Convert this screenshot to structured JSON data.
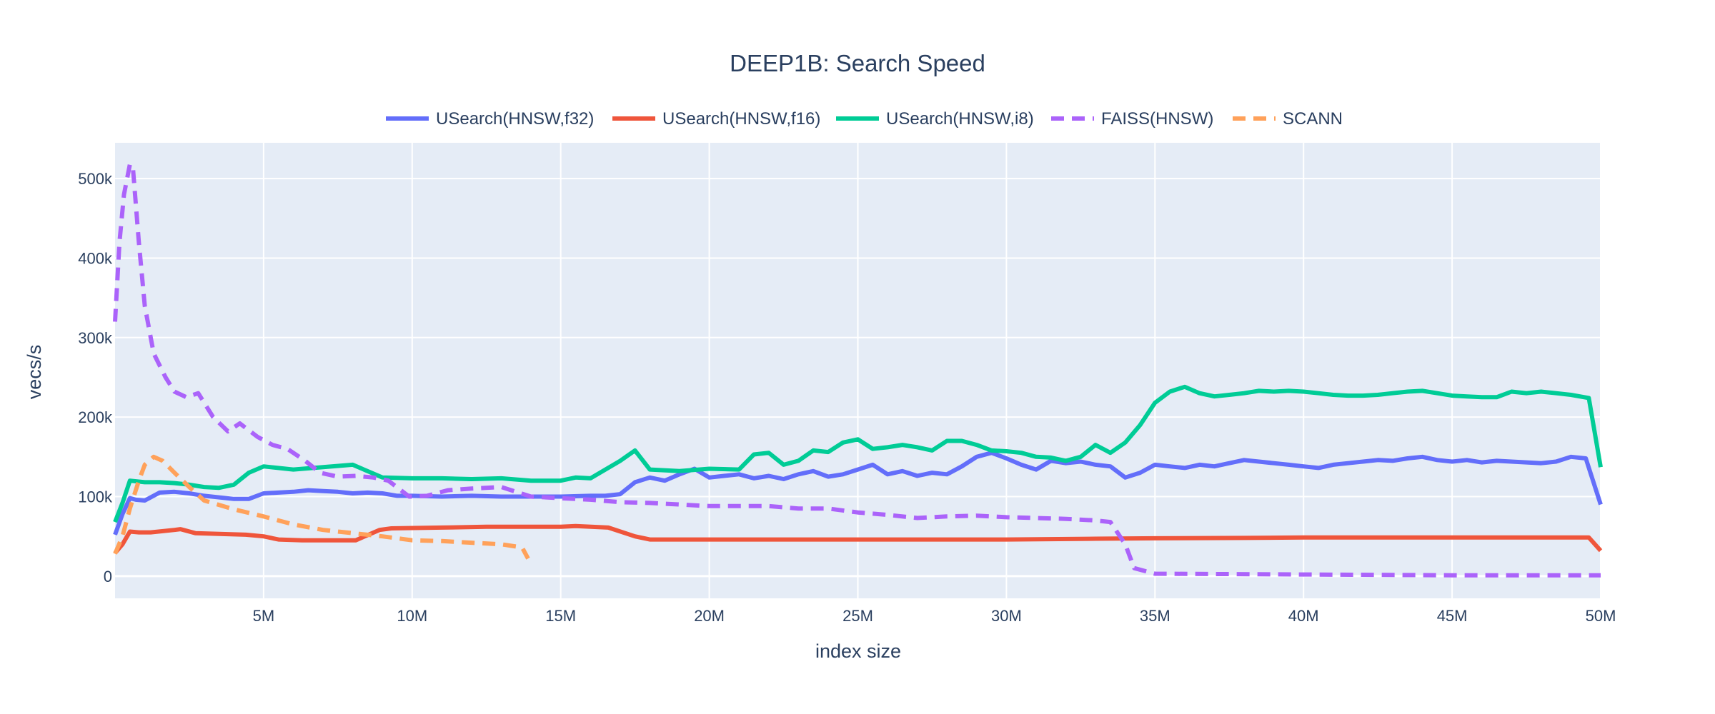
{
  "chart_data": {
    "type": "line",
    "title": "DEEP1B: Search Speed",
    "xlabel": "index size",
    "ylabel": "vecs/s",
    "xlim": [
      0,
      50000000
    ],
    "ylim": [
      -28000,
      545000
    ],
    "x_ticks": [
      {
        "value": 5000000,
        "label": "5M"
      },
      {
        "value": 10000000,
        "label": "10M"
      },
      {
        "value": 15000000,
        "label": "15M"
      },
      {
        "value": 20000000,
        "label": "20M"
      },
      {
        "value": 25000000,
        "label": "25M"
      },
      {
        "value": 30000000,
        "label": "30M"
      },
      {
        "value": 35000000,
        "label": "35M"
      },
      {
        "value": 40000000,
        "label": "40M"
      },
      {
        "value": 45000000,
        "label": "45M"
      },
      {
        "value": 50000000,
        "label": "50M"
      }
    ],
    "y_ticks": [
      {
        "value": 0,
        "label": "0"
      },
      {
        "value": 100000,
        "label": "100k"
      },
      {
        "value": 200000,
        "label": "200k"
      },
      {
        "value": 300000,
        "label": "300k"
      },
      {
        "value": 400000,
        "label": "400k"
      },
      {
        "value": 500000,
        "label": "500k"
      }
    ],
    "grid": true,
    "legend_position": "top-center",
    "plot_background": "#e5ecf6",
    "series": [
      {
        "name": "USearch(HNSW,f32)",
        "color": "#636efa",
        "dash": "solid",
        "x": [
          0,
          250000,
          500000,
          700000,
          1000000,
          1500000,
          2000000,
          2500000,
          3000000,
          4000000,
          4500000,
          5000000,
          5500000,
          6000000,
          6500000,
          7000000,
          7500000,
          8000000,
          8500000,
          9000000,
          9500000,
          10000000,
          11000000,
          12000000,
          13000000,
          14000000,
          15000000,
          16000000,
          16500000,
          17000000,
          17500000,
          18000000,
          18500000,
          19000000,
          19500000,
          20000000,
          20500000,
          21000000,
          21500000,
          22000000,
          22500000,
          23000000,
          23500000,
          24000000,
          24500000,
          25000000,
          25500000,
          26000000,
          26500000,
          27000000,
          27500000,
          28000000,
          28500000,
          29000000,
          29500000,
          30000000,
          30500000,
          31000000,
          31500000,
          32000000,
          32500000,
          33000000,
          33500000,
          34000000,
          34500000,
          35000000,
          35500000,
          36000000,
          36500000,
          37000000,
          37500000,
          38000000,
          38500000,
          39000000,
          39500000,
          40000000,
          40500000,
          41000000,
          41500000,
          42000000,
          42500000,
          43000000,
          43500000,
          44000000,
          44500000,
          45000000,
          45500000,
          46000000,
          46500000,
          47000000,
          47500000,
          48000000,
          48500000,
          49000000,
          49500000,
          50000000
        ],
        "y": [
          52000,
          78000,
          98000,
          96000,
          95000,
          105000,
          106000,
          104000,
          101000,
          97000,
          97000,
          104000,
          105000,
          106000,
          108000,
          107000,
          106000,
          104000,
          105000,
          104000,
          101000,
          101000,
          100000,
          101000,
          100000,
          100000,
          100000,
          101000,
          101000,
          103000,
          118000,
          124000,
          120000,
          128000,
          135000,
          124000,
          126000,
          128000,
          123000,
          126000,
          122000,
          128000,
          132000,
          125000,
          128000,
          134000,
          140000,
          128000,
          132000,
          126000,
          130000,
          128000,
          138000,
          150000,
          155000,
          148000,
          140000,
          134000,
          145000,
          142000,
          144000,
          140000,
          138000,
          124000,
          130000,
          140000,
          138000,
          136000,
          140000,
          138000,
          142000,
          146000,
          144000,
          142000,
          140000,
          138000,
          136000,
          140000,
          142000,
          144000,
          146000,
          145000,
          148000,
          150000,
          146000,
          144000,
          146000,
          143000,
          145000,
          144000,
          143000,
          142000,
          144000,
          150000,
          148000,
          90000
        ]
      },
      {
        "name": "USearch(HNSW,f16)",
        "color": "#ef553b",
        "dash": "solid",
        "x": [
          0,
          250000,
          500000,
          800000,
          1200000,
          2000000,
          2200000,
          2700000,
          3500000,
          4400000,
          5000000,
          5500000,
          6300000,
          7100000,
          8100000,
          8900000,
          9300000,
          11000000,
          12500000,
          13500000,
          15000000,
          15500000,
          16600000,
          17500000,
          18000000,
          19000000,
          20000000,
          25000000,
          30000000,
          33000000,
          35000000,
          38000000,
          40000000,
          45000000,
          49600000,
          50000000
        ],
        "y": [
          29000,
          40000,
          56000,
          55000,
          55000,
          58000,
          59000,
          54000,
          53000,
          52000,
          50000,
          46000,
          45000,
          45000,
          45000,
          58000,
          60000,
          61000,
          62000,
          62000,
          62000,
          63000,
          61000,
          50000,
          46000,
          46000,
          46000,
          46000,
          46000,
          47000,
          47500,
          48000,
          48500,
          48500,
          48500,
          32000
        ]
      },
      {
        "name": "USearch(HNSW,i8)",
        "color": "#00cc96",
        "dash": "solid",
        "x": [
          0,
          250000,
          500000,
          1000000,
          1500000,
          2000000,
          2500000,
          3000000,
          3500000,
          4000000,
          4500000,
          5000000,
          6000000,
          7000000,
          8000000,
          9000000,
          10000000,
          11000000,
          12000000,
          13000000,
          14000000,
          15000000,
          15500000,
          16000000,
          17000000,
          17500000,
          18000000,
          19000000,
          20000000,
          21000000,
          21500000,
          22000000,
          22500000,
          23000000,
          23500000,
          24000000,
          24500000,
          25000000,
          25500000,
          26000000,
          26500000,
          27000000,
          27500000,
          28000000,
          28500000,
          29000000,
          29500000,
          30000000,
          30500000,
          31000000,
          31500000,
          32000000,
          32500000,
          33000000,
          33500000,
          34000000,
          34500000,
          35000000,
          35500000,
          36000000,
          36500000,
          37000000,
          37500000,
          38000000,
          38500000,
          39000000,
          39500000,
          40000000,
          40500000,
          41000000,
          41500000,
          42000000,
          42500000,
          43000000,
          43500000,
          44000000,
          44500000,
          45000000,
          45500000,
          46000000,
          46500000,
          47000000,
          47500000,
          48000000,
          48500000,
          49000000,
          49600000,
          50000000
        ],
        "y": [
          68000,
          92000,
          120000,
          118000,
          118000,
          117000,
          115000,
          112000,
          111000,
          115000,
          130000,
          138000,
          134000,
          137000,
          140000,
          124000,
          123000,
          123000,
          122000,
          123000,
          120000,
          120000,
          124000,
          123000,
          145000,
          158000,
          134000,
          132000,
          135000,
          134000,
          153000,
          155000,
          140000,
          145000,
          158000,
          156000,
          168000,
          172000,
          160000,
          162000,
          165000,
          162000,
          158000,
          170000,
          170000,
          165000,
          158000,
          157000,
          155000,
          150000,
          149000,
          145000,
          150000,
          165000,
          155000,
          168000,
          190000,
          218000,
          232000,
          238000,
          230000,
          226000,
          228000,
          230000,
          233000,
          232000,
          233000,
          232000,
          230000,
          228000,
          227000,
          227000,
          228000,
          230000,
          232000,
          233000,
          230000,
          227000,
          226000,
          225000,
          225000,
          232000,
          230000,
          232000,
          230000,
          228000,
          224000,
          137000
        ]
      },
      {
        "name": "FAISS(HNSW)",
        "color": "#ab63fa",
        "dash": "dash",
        "x": [
          0,
          150000,
          300000,
          500000,
          600000,
          800000,
          1000000,
          1300000,
          1700000,
          2000000,
          2400000,
          2800000,
          3300000,
          3800000,
          4200000,
          4800000,
          5300000,
          5800000,
          6400000,
          6900000,
          7500000,
          8100000,
          8700000,
          9200000,
          9900000,
          10500000,
          11200000,
          12000000,
          13000000,
          14000000,
          15000000,
          16000000,
          17000000,
          18000000,
          19000000,
          20000000,
          21000000,
          22000000,
          23000000,
          24000000,
          25000000,
          26000000,
          27000000,
          28000000,
          29000000,
          30000000,
          31000000,
          32000000,
          33000000,
          33500000,
          34000000,
          34300000,
          35000000,
          40000000,
          45000000,
          50000000
        ],
        "y": [
          320000,
          420000,
          480000,
          518000,
          515000,
          420000,
          340000,
          280000,
          250000,
          232000,
          225000,
          230000,
          200000,
          182000,
          192000,
          175000,
          165000,
          160000,
          145000,
          130000,
          125000,
          126000,
          124000,
          120000,
          100000,
          101000,
          108000,
          110000,
          112000,
          100000,
          98000,
          96000,
          93000,
          92000,
          90000,
          88000,
          88000,
          88000,
          85000,
          85000,
          80000,
          77000,
          73000,
          75000,
          76000,
          74000,
          73000,
          72000,
          70000,
          68000,
          40000,
          10000,
          3000,
          2000,
          1000,
          1000
        ]
      },
      {
        "name": "SCANN",
        "color": "#ffa15a",
        "dash": "dash",
        "x": [
          0,
          250000,
          500000,
          800000,
          1000000,
          1300000,
          1600000,
          2000000,
          2500000,
          3000000,
          4000000,
          5000000,
          6000000,
          7000000,
          8000000,
          9000000,
          10000000,
          11000000,
          12000000,
          13000000,
          13700000,
          13900000
        ],
        "y": [
          28000,
          50000,
          85000,
          120000,
          140000,
          150000,
          145000,
          130000,
          112000,
          95000,
          84000,
          75000,
          65000,
          58000,
          54000,
          50000,
          45000,
          44000,
          42000,
          40000,
          36000,
          22000
        ]
      }
    ]
  }
}
